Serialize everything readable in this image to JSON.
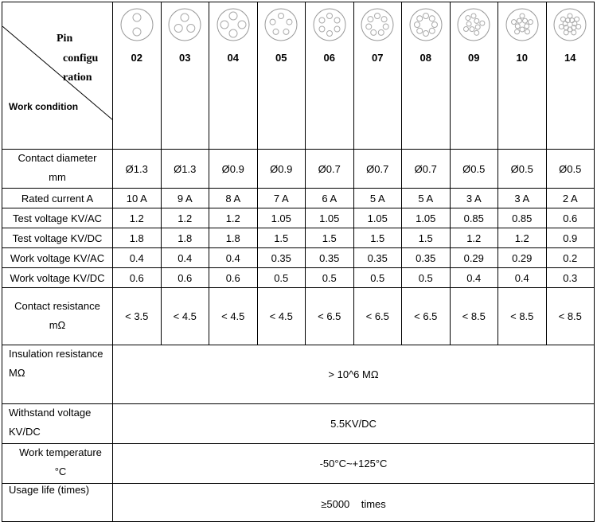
{
  "corner": {
    "top_lines": [
      "Pin",
      "configu",
      "ration"
    ],
    "bottom": "Work condition"
  },
  "columns": [
    "02",
    "03",
    "04",
    "05",
    "06",
    "07",
    "08",
    "09",
    "10",
    "14"
  ],
  "rows": [
    {
      "label": [
        "Contact diameter",
        "mm"
      ],
      "values": [
        "Ø1.3",
        "Ø1.3",
        "Ø0.9",
        "Ø0.9",
        "Ø0.7",
        "Ø0.7",
        "Ø0.7",
        "Ø0.5",
        "Ø0.5",
        "Ø0.5"
      ]
    },
    {
      "label": [
        "Rated current A"
      ],
      "values": [
        "10 A",
        "9 A",
        "8 A",
        "7 A",
        "6 A",
        "5 A",
        "5 A",
        "3 A",
        "3 A",
        "2 A"
      ]
    },
    {
      "label": [
        "Test voltage KV/AC"
      ],
      "values": [
        "1.2",
        "1.2",
        "1.2",
        "1.05",
        "1.05",
        "1.05",
        "1.05",
        "0.85",
        "0.85",
        "0.6"
      ]
    },
    {
      "label": [
        "Test voltage KV/DC"
      ],
      "values": [
        "1.8",
        "1.8",
        "1.8",
        "1.5",
        "1.5",
        "1.5",
        "1.5",
        "1.2",
        "1.2",
        "0.9"
      ]
    },
    {
      "label": [
        "Work voltage KV/AC"
      ],
      "values": [
        "0.4",
        "0.4",
        "0.4",
        "0.35",
        "0.35",
        "0.35",
        "0.35",
        "0.29",
        "0.29",
        "0.2"
      ]
    },
    {
      "label": [
        "Work voltage KV/DC"
      ],
      "values": [
        "0.6",
        "0.6",
        "0.6",
        "0.5",
        "0.5",
        "0.5",
        "0.5",
        "0.4",
        "0.4",
        "0.3"
      ]
    },
    {
      "label": [
        "Contact resistance",
        "mΩ"
      ],
      "values": [
        "< 3.5",
        "< 4.5",
        "< 4.5",
        "< 4.5",
        "< 6.5",
        "< 6.5",
        "< 6.5",
        "< 8.5",
        "< 8.5",
        "< 8.5"
      ]
    }
  ],
  "span_rows": [
    {
      "label": [
        "Insulation resistance",
        "MΩ"
      ],
      "value": "> 10^6 MΩ"
    },
    {
      "label": [
        "Withstand voltage",
        "KV/DC"
      ],
      "value": "5.5KV/DC"
    },
    {
      "label": [
        "Work temperature",
        "°C"
      ],
      "value": "-50°C~+125°C"
    },
    {
      "label": [
        "Usage life (times)"
      ],
      "value": "≥5000    times"
    }
  ]
}
